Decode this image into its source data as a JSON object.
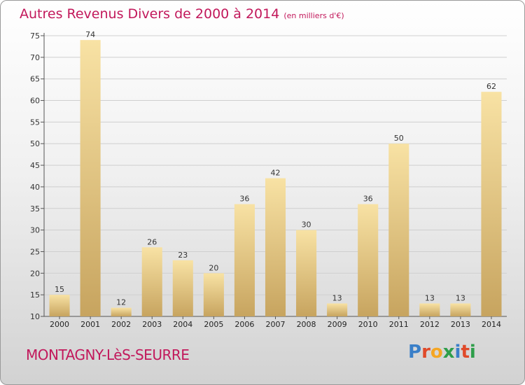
{
  "title": "Autres Revenus Divers de 2000 à 2014",
  "unit": "(en milliers d'€)",
  "commune": "MONTAGNY-LèS-SEURRE",
  "logo": {
    "text": "Proxiti",
    "colors": [
      "#3a7fc8",
      "#e04a2a",
      "#f5a623",
      "#2e9e4a",
      "#3a7fc8",
      "#e04a2a",
      "#2e9e4a"
    ]
  },
  "colors": {
    "title": "#c2185b",
    "bar_light": "#f8e2a4",
    "bar_dark": "#c7a45f",
    "grid": "#cfcfcf"
  },
  "chart_data": {
    "type": "bar",
    "categories": [
      "2000",
      "2001",
      "2002",
      "2003",
      "2004",
      "2005",
      "2006",
      "2007",
      "2008",
      "2009",
      "2010",
      "2011",
      "2012",
      "2013",
      "2014"
    ],
    "values": [
      15,
      74,
      12,
      26,
      23,
      20,
      36,
      42,
      30,
      13,
      36,
      50,
      13,
      13,
      62
    ],
    "ylim": [
      10,
      75
    ],
    "yticks": [
      10,
      15,
      20,
      25,
      30,
      35,
      40,
      45,
      50,
      55,
      60,
      65,
      70,
      75
    ],
    "grid": true,
    "title": "Autres Revenus Divers de 2000 à 2014",
    "xlabel": "",
    "ylabel": ""
  }
}
